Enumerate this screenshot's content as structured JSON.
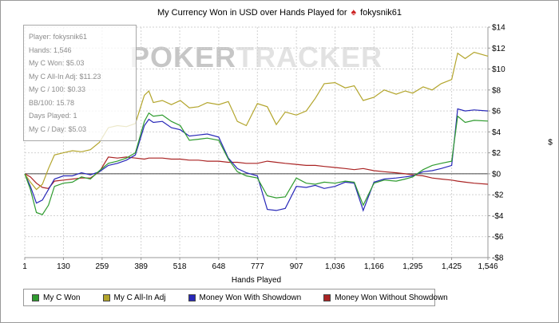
{
  "title": {
    "prefix": "My Currency Won in USD over Hands Played for",
    "logo_glyph": "♠",
    "player": "fokysnik61"
  },
  "watermark": {
    "part1": "POKER",
    "part2": "TRACKER"
  },
  "stats_box": {
    "lines": [
      "Player: fokysnik61",
      "Hands: 1,546",
      "My C Won: $5.03",
      "My C All-In Adj: $11.23",
      "My C / 100: $0.33",
      "BB/100: 15.78",
      "Days Played: 1",
      "My C / Day: $5.03"
    ]
  },
  "chart_data": {
    "type": "line",
    "title": "My Currency Won in USD over Hands Played for fokysnik61",
    "xlabel": "Hands Played",
    "ylabel": "$",
    "ylim": [
      -8,
      14
    ],
    "y_tick_step": 2,
    "y_tick_labels": [
      "$14",
      "$12",
      "$10",
      "$8",
      "$6",
      "$4",
      "$2",
      "$0",
      "-$2",
      "-$4",
      "-$6",
      "-$8"
    ],
    "x_ticks": [
      1,
      130,
      259,
      389,
      518,
      648,
      777,
      907,
      1036,
      1166,
      1295,
      1425,
      1546
    ],
    "x_tick_labels": [
      "1",
      "130",
      "259",
      "389",
      "518",
      "648",
      "777",
      "907",
      "1,036",
      "1,166",
      "1,295",
      "1,425",
      "1,546"
    ],
    "grid": true,
    "zero_line": true,
    "legend_position": "bottom",
    "x": [
      1,
      20,
      40,
      60,
      80,
      100,
      130,
      160,
      190,
      220,
      250,
      280,
      310,
      340,
      370,
      400,
      415,
      430,
      460,
      490,
      520,
      550,
      580,
      610,
      648,
      680,
      710,
      740,
      777,
      810,
      840,
      870,
      907,
      940,
      970,
      1000,
      1036,
      1070,
      1100,
      1130,
      1166,
      1200,
      1240,
      1270,
      1295,
      1330,
      1360,
      1390,
      1425,
      1445,
      1470,
      1500,
      1546
    ],
    "series": [
      {
        "name": "My C Won",
        "color": "#2f9b2f",
        "final_value": 5.03,
        "values": [
          0,
          -1.5,
          -3.7,
          -3.9,
          -3.0,
          -1.2,
          -0.9,
          -0.8,
          -0.3,
          -0.5,
          0.3,
          1.0,
          1.2,
          1.5,
          2.0,
          5.0,
          5.8,
          5.5,
          5.6,
          5.0,
          4.6,
          3.2,
          3.3,
          3.4,
          3.2,
          1.4,
          0.2,
          -0.2,
          -0.4,
          -2.1,
          -2.3,
          -2.2,
          -0.4,
          -0.9,
          -1.0,
          -0.8,
          -0.9,
          -0.7,
          -0.8,
          -3.0,
          -0.9,
          -0.6,
          -0.7,
          -0.5,
          -0.3,
          0.4,
          0.8,
          1.0,
          1.2,
          5.5,
          4.9,
          5.1,
          5.03
        ]
      },
      {
        "name": "My C All-In Adj",
        "color": "#b3a52c",
        "final_value": 11.23,
        "values": [
          0,
          -0.8,
          -1.5,
          -1.0,
          0.5,
          1.8,
          2.0,
          2.2,
          2.1,
          2.3,
          3.0,
          4.4,
          4.6,
          4.5,
          4.8,
          7.5,
          7.9,
          6.8,
          7.0,
          6.6,
          7.0,
          6.3,
          6.4,
          6.8,
          6.6,
          6.9,
          5.0,
          4.6,
          6.7,
          6.4,
          4.7,
          5.9,
          5.6,
          6.0,
          7.2,
          8.6,
          8.7,
          8.2,
          8.4,
          7.0,
          7.3,
          8.0,
          7.6,
          7.9,
          7.7,
          8.3,
          8.0,
          8.6,
          9.0,
          11.5,
          11.0,
          11.6,
          11.23
        ]
      },
      {
        "name": "Money Won With Showdown",
        "color": "#2828b8",
        "final_value": 6.0,
        "values": [
          0,
          -1.2,
          -2.8,
          -2.5,
          -1.5,
          -0.5,
          -0.2,
          -0.2,
          0.1,
          -0.1,
          0.2,
          0.8,
          1.0,
          1.3,
          1.8,
          4.6,
          5.2,
          4.9,
          5.0,
          4.4,
          4.2,
          3.6,
          3.7,
          3.8,
          3.5,
          1.5,
          0.5,
          0.1,
          -0.2,
          -3.4,
          -3.5,
          -3.3,
          -1.2,
          -1.3,
          -1.1,
          -1.4,
          -1.2,
          -0.8,
          -0.9,
          -3.5,
          -0.8,
          -0.5,
          -0.4,
          -0.3,
          -0.2,
          0.2,
          0.3,
          0.5,
          0.8,
          6.2,
          6.0,
          6.1,
          6.0
        ]
      },
      {
        "name": "Money Won Without Showdown",
        "color": "#aa2424",
        "final_value": -1.0,
        "values": [
          0,
          -0.3,
          -0.9,
          -1.3,
          -1.4,
          -0.7,
          -0.6,
          -0.5,
          -0.4,
          -0.4,
          0.2,
          1.6,
          1.5,
          1.6,
          1.5,
          1.4,
          1.5,
          1.5,
          1.5,
          1.4,
          1.4,
          1.3,
          1.3,
          1.2,
          1.2,
          1.1,
          1.1,
          1.0,
          1.0,
          1.2,
          1.1,
          1.0,
          0.9,
          0.8,
          0.8,
          0.7,
          0.6,
          0.5,
          0.4,
          0.5,
          0.3,
          0.2,
          0.1,
          0.0,
          -0.1,
          -0.2,
          -0.4,
          -0.5,
          -0.6,
          -0.7,
          -0.8,
          -0.9,
          -1.0
        ]
      }
    ]
  }
}
